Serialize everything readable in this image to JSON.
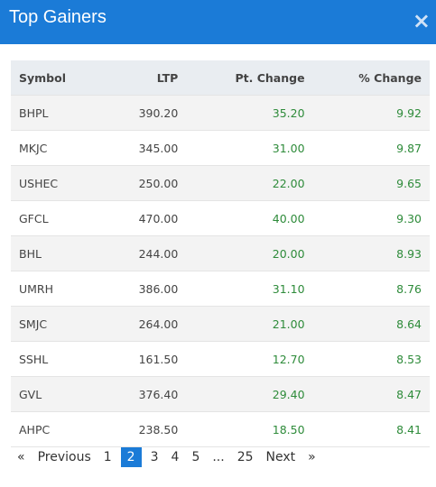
{
  "header": {
    "title": "Top Gainers",
    "close": "×"
  },
  "table": {
    "columns": [
      "Symbol",
      "LTP",
      "Pt. Change",
      "% Change"
    ],
    "rows": [
      [
        "BHPL",
        "390.20",
        "35.20",
        "9.92"
      ],
      [
        "MKJC",
        "345.00",
        "31.00",
        "9.87"
      ],
      [
        "USHEC",
        "250.00",
        "22.00",
        "9.65"
      ],
      [
        "GFCL",
        "470.00",
        "40.00",
        "9.30"
      ],
      [
        "BHL",
        "244.00",
        "20.00",
        "8.93"
      ],
      [
        "UMRH",
        "386.00",
        "31.10",
        "8.76"
      ],
      [
        "SMJC",
        "264.00",
        "21.00",
        "8.64"
      ],
      [
        "SSHL",
        "161.50",
        "12.70",
        "8.53"
      ],
      [
        "GVL",
        "376.40",
        "29.40",
        "8.47"
      ],
      [
        "AHPC",
        "238.50",
        "18.50",
        "8.41"
      ]
    ]
  },
  "pagination": {
    "items": [
      "«",
      "Previous",
      "1",
      "2",
      "3",
      "4",
      "5",
      "...",
      "25",
      "Next",
      "»"
    ],
    "active": 3
  }
}
